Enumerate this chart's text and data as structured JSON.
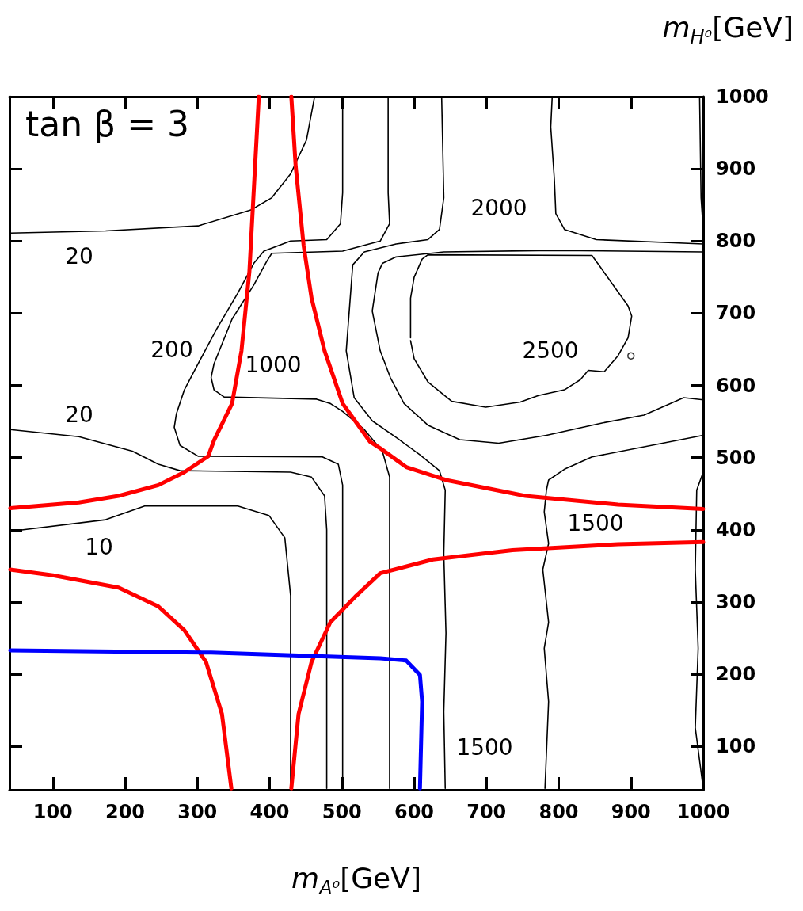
{
  "chart_data": {
    "type": "line",
    "xlabel": "m$_{A⁰}$[GeV]",
    "ylabel": "m$_{H⁰}$[GeV]",
    "xlim": [
      40,
      1000
    ],
    "ylim": [
      40,
      1000
    ],
    "xticks": [
      100,
      200,
      300,
      400,
      500,
      600,
      700,
      800,
      900,
      1000
    ],
    "yticks": [
      100,
      200,
      300,
      400,
      500,
      600,
      700,
      800,
      900,
      1000
    ],
    "grid": false,
    "marker": "none",
    "line_style": "solid",
    "annotations": [
      "tan β = 3",
      "20",
      "200",
      "1000",
      "20",
      "10",
      "2000",
      "2500",
      "1500",
      "1500"
    ],
    "series": [
      {
        "color": "#000000",
        "x": [
          41,
          173,
          301,
          374,
          403,
          429,
          451,
          462
        ],
        "values": [
          811,
          814,
          821,
          843,
          860,
          893,
          940,
          999
        ]
      },
      {
        "color": "#000000",
        "x": [
          501,
          501,
          498,
          479,
          429,
          392,
          378,
          356,
          326,
          301,
          282,
          271,
          268,
          276,
          301,
          473,
          495,
          501,
          501
        ],
        "values": [
          1000,
          867,
          824,
          802,
          800,
          786,
          769,
          728,
          677,
          630,
          594,
          561,
          542,
          517,
          502,
          501,
          491,
          462,
          42
        ]
      },
      {
        "color": "#000000",
        "x": [
          564,
          564,
          566,
          553,
          501,
          403,
          396,
          378,
          348,
          323,
          319,
          323,
          337,
          465,
          484,
          501,
          531,
          556,
          566,
          566
        ],
        "values": [
          1000,
          867,
          824,
          800,
          786,
          783,
          772,
          739,
          692,
          630,
          611,
          594,
          584,
          581,
          575,
          564,
          539,
          509,
          473,
          42
        ]
      },
      {
        "color": "#000000",
        "x": [
          41,
          136,
          210,
          246,
          276,
          429,
          458,
          476,
          479,
          479
        ],
        "values": [
          539,
          529,
          509,
          491,
          482,
          480,
          473,
          447,
          400,
          42
        ]
      },
      {
        "color": "#000000",
        "x": [
          41,
          173,
          227,
          356,
          399,
          421,
          429,
          429
        ],
        "values": [
          398,
          414,
          433,
          433,
          420,
          389,
          309,
          42
        ]
      },
      {
        "color": "#000000",
        "x": [
          638,
          641,
          635,
          619,
          575,
          531,
          515,
          506,
          517,
          542,
          575,
          608,
          635,
          643,
          641,
          644,
          641,
          643
        ],
        "values": [
          1000,
          860,
          816,
          802,
          796,
          785,
          767,
          648,
          583,
          551,
          528,
          504,
          482,
          455,
          367,
          257,
          148,
          42
        ]
      },
      {
        "color": "#000000",
        "x": [
          1000,
          794,
          641,
          575,
          556,
          550,
          542,
          553,
          567,
          586,
          619,
          663,
          717,
          783,
          860,
          918,
          973,
          1000
        ],
        "values": [
          785,
          787,
          785,
          778,
          769,
          756,
          703,
          648,
          611,
          575,
          545,
          525,
          520,
          531,
          548,
          559,
          583,
          580
        ]
      },
      {
        "color": "#000000",
        "x": [
          1000,
          846,
          808,
          786,
          783,
          780,
          786,
          778,
          786,
          780,
          786,
          781
        ],
        "values": [
          531,
          501,
          484,
          469,
          455,
          425,
          381,
          345,
          272,
          236,
          162,
          42
        ]
      },
      {
        "color": "#000000",
        "x": [
          1000,
          991,
          989,
          993,
          989,
          1000
        ],
        "values": [
          480,
          455,
          345,
          236,
          126,
          42
        ]
      },
      {
        "color": "#000000",
        "x": [
          995,
          997,
          1000
        ],
        "values": [
          1000,
          860,
          816
        ]
      },
      {
        "color": "#000000",
        "x": [
          791,
          789,
          794,
          796,
          808,
          852,
          1000
        ],
        "values": [
          1000,
          958,
          885,
          838,
          816,
          802,
          796
        ]
      },
      {
        "color": "#000000",
        "x": [
          595,
          595,
          600,
          611,
          619,
          846,
          857,
          896,
          901,
          896,
          882,
          863,
          841,
          830,
          808,
          772,
          747,
          699,
          652,
          619,
          600,
          595
        ],
        "values": [
          666,
          721,
          750,
          775,
          781,
          780,
          765,
          710,
          696,
          666,
          641,
          619,
          621,
          608,
          594,
          586,
          577,
          570,
          578,
          605,
          637,
          662
        ]
      },
      {
        "type": "scatter",
        "marker": "circle",
        "color": "#000000",
        "x": [
          900
        ],
        "values": [
          641
        ]
      },
      {
        "color": "#ff0000",
        "x": [
          385,
          372,
          361,
          348,
          323,
          315,
          282,
          246,
          191,
          136,
          41
        ],
        "values": [
          1000,
          758,
          648,
          575,
          524,
          502,
          480,
          462,
          447,
          438,
          430
        ]
      },
      {
        "color": "#ff0000",
        "x": [
          430,
          436,
          447,
          458,
          476,
          501,
          539,
          553,
          589,
          644,
          754,
          882,
          1000
        ],
        "values": [
          1000,
          904,
          794,
          721,
          648,
          575,
          522,
          513,
          487,
          469,
          447,
          435,
          429
        ]
      },
      {
        "color": "#ff0000",
        "x": [
          41,
          100,
          191,
          246,
          282,
          312,
          334,
          347
        ],
        "values": [
          345,
          337,
          320,
          294,
          261,
          217,
          145,
          42
        ]
      },
      {
        "color": "#ff0000",
        "x": [
          430,
          440,
          458,
          484,
          520,
          553,
          626,
          736,
          882,
          1000
        ],
        "values": [
          42,
          145,
          217,
          272,
          309,
          340,
          359,
          372,
          380,
          383
        ]
      },
      {
        "color": "#0000ff",
        "x": [
          41,
          319,
          553,
          589,
          608,
          611,
          608
        ],
        "values": [
          233,
          230,
          222,
          219,
          199,
          162,
          42
        ]
      }
    ]
  }
}
